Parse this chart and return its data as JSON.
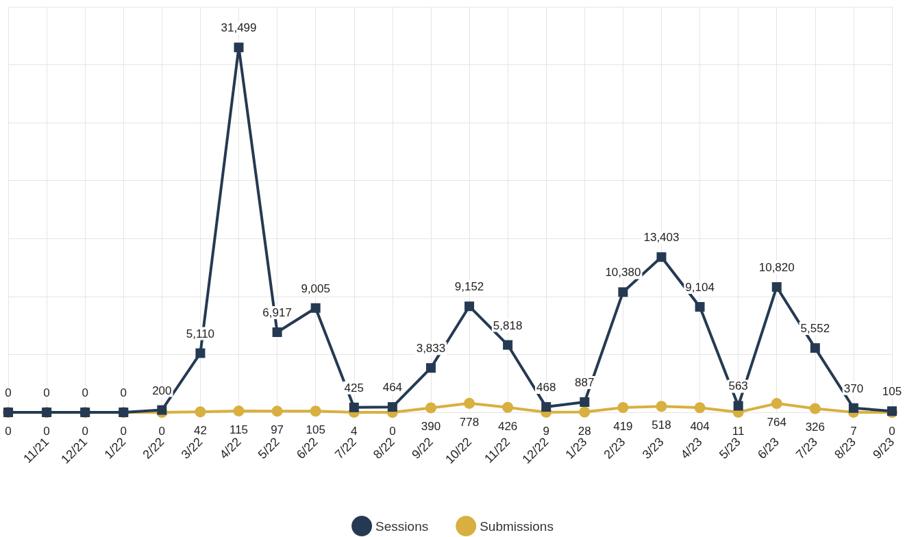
{
  "chart_data": {
    "type": "line",
    "categories": [
      null,
      "11/21",
      "12/21",
      "1/22",
      "2/22",
      "3/22",
      "4/22",
      "5/22",
      "6/22",
      "7/22",
      "8/22",
      "9/22",
      "10/22",
      "11/22",
      "12/22",
      "1/23",
      "2/23",
      "3/23",
      "4/23",
      "5/23",
      "6/23",
      "7/23",
      "8/23",
      "9/23"
    ],
    "series": [
      {
        "name": "Sessions",
        "color": "#253a52",
        "marker": "square",
        "values": [
          0,
          0,
          0,
          0,
          200,
          5110,
          31499,
          6917,
          9005,
          425,
          464,
          3833,
          9152,
          5818,
          468,
          887,
          10380,
          13403,
          9104,
          563,
          10820,
          5552,
          370,
          105
        ],
        "value_labels": [
          "0",
          "0",
          "0",
          "0",
          "200",
          "5,110",
          "31,499",
          "6,917",
          "9,005",
          "425",
          "464",
          "3,833",
          "9,152",
          "5,818",
          "468",
          "887",
          "10,380",
          "13,403",
          "9,104",
          "563",
          "10,820",
          "5,552",
          "370",
          "105"
        ]
      },
      {
        "name": "Submissions",
        "color": "#d8b040",
        "marker": "circle",
        "values": [
          0,
          0,
          0,
          0,
          0,
          42,
          115,
          97,
          105,
          4,
          0,
          390,
          778,
          426,
          9,
          28,
          419,
          518,
          404,
          11,
          764,
          326,
          7,
          0
        ],
        "value_labels": [
          "0",
          "0",
          "0",
          "0",
          "0",
          "42",
          "115",
          "97",
          "105",
          "4",
          "0",
          "390",
          "778",
          "426",
          "9",
          "28",
          "419",
          "518",
          "404",
          "11",
          "764",
          "326",
          "7",
          "0"
        ]
      }
    ],
    "ylim": [
      0,
      35000
    ],
    "yticks": [
      {
        "value": 0,
        "label": null
      },
      {
        "value": 5000,
        "label": null
      },
      {
        "value": 10000,
        "label": null
      },
      {
        "value": 15000,
        "label": null
      },
      {
        "value": 20000,
        "label": null
      },
      {
        "value": 25000,
        "label": null
      },
      {
        "value": 30000,
        "label": null
      },
      {
        "value": 35000,
        "label": null
      }
    ],
    "grid": true,
    "legend": "bottom",
    "line_style": "solid"
  }
}
